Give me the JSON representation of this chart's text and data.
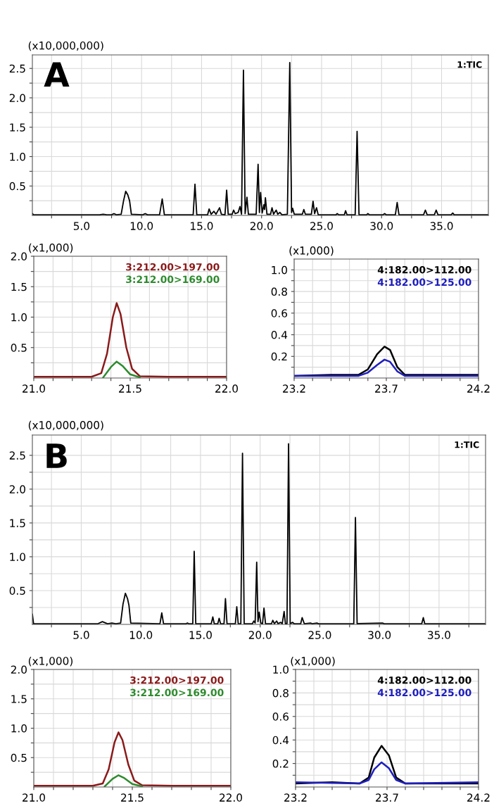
{
  "chart_data": [
    {
      "type": "line",
      "ylabel": "(x10,000,000)",
      "annotations": [
        "A"
      ],
      "legend": "top right",
      "grid": true,
      "xlim": [
        0.9,
        38.9
      ],
      "ylim": [
        0,
        2.73
      ],
      "xticks": [
        {
          "value": 2.5,
          "label": null
        },
        {
          "value": 5,
          "label": "5.0"
        },
        {
          "value": 7.5,
          "label": null
        },
        {
          "value": 10,
          "label": "10.0"
        },
        {
          "value": 12.5,
          "label": null
        },
        {
          "value": 15,
          "label": "15.0"
        },
        {
          "value": 17.5,
          "label": null
        },
        {
          "value": 20,
          "label": "20.0"
        },
        {
          "value": 22.5,
          "label": null
        },
        {
          "value": 25,
          "label": "25.0"
        },
        {
          "value": 27.5,
          "label": null
        },
        {
          "value": 30,
          "label": "30.0"
        },
        {
          "value": 32.5,
          "label": null
        },
        {
          "value": 35,
          "label": "35.0"
        },
        {
          "value": 37.5,
          "label": null
        }
      ],
      "yticks": [
        {
          "value": 0.25,
          "label": null
        },
        {
          "value": 0.5,
          "label": "0.5"
        },
        {
          "value": 0.75,
          "label": null
        },
        {
          "value": 1,
          "label": "1.0"
        },
        {
          "value": 1.25,
          "label": null
        },
        {
          "value": 1.5,
          "label": "1.5"
        },
        {
          "value": 1.75,
          "label": null
        },
        {
          "value": 2,
          "label": "2.0"
        },
        {
          "value": 2.25,
          "label": null
        },
        {
          "value": 2.5,
          "label": "2.5"
        }
      ],
      "series": [
        {
          "name": "1:TIC",
          "color": "#000000",
          "x": [
            0.9,
            1.0,
            6.5,
            6.8,
            7.1,
            7.5,
            7.7,
            7.9,
            8.3,
            8.5,
            8.68,
            8.85,
            9.0,
            9.15,
            10.1,
            10.3,
            10.5,
            11.5,
            11.72,
            11.9,
            14.3,
            14.45,
            14.6,
            15.5,
            15.63,
            15.8,
            16.03,
            16.2,
            16.5,
            16.65,
            16.95,
            17.09,
            17.22,
            17.55,
            17.67,
            17.8,
            18.05,
            18.2,
            18.33,
            18.49,
            18.63,
            18.78,
            18.9,
            19.55,
            19.71,
            19.82,
            19.92,
            20.05,
            20.19,
            20.25,
            20.32,
            20.45,
            20.75,
            20.87,
            21.0,
            21.22,
            21.35,
            21.53,
            21.7,
            22.15,
            22.35,
            22.5,
            22.59,
            22.72,
            23.4,
            23.52,
            23.65,
            24.15,
            24.29,
            24.42,
            24.58,
            24.72,
            26.2,
            26.3,
            26.45,
            26.9,
            27.0,
            27.12,
            27.8,
            27.96,
            28.12,
            28.75,
            28.86,
            29.0,
            30.1,
            30.26,
            30.4,
            31.15,
            31.3,
            31.45,
            33.5,
            33.65,
            33.8,
            34.4,
            34.55,
            34.7,
            35.8,
            35.93,
            36.05,
            38.9
          ],
          "values": [
            0.03,
            0.01,
            0.01,
            0.02,
            0.01,
            0.01,
            0.03,
            0.01,
            0.02,
            0.25,
            0.41,
            0.35,
            0.25,
            0.02,
            0.01,
            0.03,
            0.01,
            0.01,
            0.28,
            0.01,
            0.01,
            0.53,
            0.01,
            0.01,
            0.11,
            0.02,
            0.07,
            0.02,
            0.13,
            0.02,
            0.01,
            0.43,
            0.02,
            0.02,
            0.09,
            0.03,
            0.05,
            0.15,
            0.02,
            2.47,
            0.03,
            0.31,
            0.02,
            0.02,
            0.87,
            0.05,
            0.39,
            0.04,
            0.18,
            0.1,
            0.3,
            0.02,
            0.02,
            0.13,
            0.02,
            0.09,
            0.02,
            0.05,
            0.01,
            0.02,
            2.6,
            0.05,
            0.12,
            0.02,
            0.02,
            0.1,
            0.02,
            0.02,
            0.24,
            0.03,
            0.13,
            0.01,
            0.01,
            0.03,
            0.01,
            0.01,
            0.08,
            0.01,
            0.01,
            1.43,
            0.01,
            0.01,
            0.03,
            0.01,
            0.01,
            0.03,
            0.01,
            0.01,
            0.22,
            0.01,
            0.01,
            0.09,
            0.01,
            0.01,
            0.09,
            0.01,
            0.01,
            0.04,
            0.01,
            0.01
          ]
        }
      ]
    },
    {
      "type": "line",
      "ylabel": "(x1,000)",
      "legend": "top right",
      "grid": true,
      "xlim": [
        21.0,
        22.0
      ],
      "ylim": [
        0,
        2.0
      ],
      "xticks": [
        {
          "value": 21.0,
          "label": "21.0"
        },
        {
          "value": 21.1,
          "label": null
        },
        {
          "value": 21.2,
          "label": null
        },
        {
          "value": 21.3,
          "label": null
        },
        {
          "value": 21.4,
          "label": null
        },
        {
          "value": 21.5,
          "label": "21.5"
        },
        {
          "value": 21.6,
          "label": null
        },
        {
          "value": 21.7,
          "label": null
        },
        {
          "value": 21.8,
          "label": null
        },
        {
          "value": 21.9,
          "label": null
        },
        {
          "value": 22.0,
          "label": "22.0"
        }
      ],
      "yticks": [
        {
          "value": 0.25,
          "label": null
        },
        {
          "value": 0.5,
          "label": "0.5"
        },
        {
          "value": 0.75,
          "label": null
        },
        {
          "value": 1,
          "label": "1.0"
        },
        {
          "value": 1.25,
          "label": null
        },
        {
          "value": 1.5,
          "label": "1.5"
        },
        {
          "value": 1.75,
          "label": null
        },
        {
          "value": 2,
          "label": "2.0"
        }
      ],
      "series": [
        {
          "name": "3:212.00>197.00",
          "color": "#8b1a1a",
          "x": [
            21.0,
            21.3,
            21.35,
            21.38,
            21.41,
            21.43,
            21.45,
            21.48,
            21.51,
            21.55,
            21.7,
            22.0
          ],
          "values": [
            0.02,
            0.02,
            0.08,
            0.4,
            1.0,
            1.23,
            1.05,
            0.5,
            0.15,
            0.03,
            0.02,
            0.02
          ]
        },
        {
          "name": "3:212.00>169.00",
          "color": "#2e8b2e",
          "x": [
            21.36,
            21.4,
            21.43,
            21.46,
            21.5,
            21.55
          ],
          "values": [
            0.01,
            0.18,
            0.27,
            0.2,
            0.06,
            0.01
          ]
        }
      ]
    },
    {
      "type": "line",
      "ylabel": "(x1,000)",
      "legend": "top right",
      "grid": true,
      "xlim": [
        23.2,
        24.2
      ],
      "ylim": [
        0,
        1.1
      ],
      "xticks": [
        {
          "value": 23.2,
          "label": "23.2"
        },
        {
          "value": 23.3,
          "label": null
        },
        {
          "value": 23.4,
          "label": null
        },
        {
          "value": 23.5,
          "label": null
        },
        {
          "value": 23.6,
          "label": null
        },
        {
          "value": 23.7,
          "label": "23.7"
        },
        {
          "value": 23.8,
          "label": null
        },
        {
          "value": 23.9,
          "label": null
        },
        {
          "value": 24.0,
          "label": null
        },
        {
          "value": 24.1,
          "label": null
        },
        {
          "value": 24.2,
          "label": "24.2"
        }
      ],
      "yticks": [
        {
          "value": 0.1,
          "label": null
        },
        {
          "value": 0.2,
          "label": "0.2"
        },
        {
          "value": 0.3,
          "label": null
        },
        {
          "value": 0.4,
          "label": "0.4"
        },
        {
          "value": 0.5,
          "label": null
        },
        {
          "value": 0.6,
          "label": "0.6"
        },
        {
          "value": 0.7,
          "label": null
        },
        {
          "value": 0.8,
          "label": "0.8"
        },
        {
          "value": 0.9,
          "label": null
        },
        {
          "value": 1.0,
          "label": "1.0"
        }
      ],
      "series": [
        {
          "name": "4:182.00>112.00",
          "color": "#000000",
          "x": [
            23.2,
            23.4,
            23.55,
            23.6,
            23.65,
            23.69,
            23.72,
            23.76,
            23.8,
            24.0,
            24.2
          ],
          "values": [
            0.02,
            0.03,
            0.03,
            0.08,
            0.22,
            0.29,
            0.26,
            0.1,
            0.03,
            0.03,
            0.03
          ]
        },
        {
          "name": "4:182.00>125.00",
          "color": "#1f1fbf",
          "x": [
            23.2,
            23.55,
            23.6,
            23.65,
            23.69,
            23.72,
            23.76,
            23.8,
            24.2
          ],
          "values": [
            0.02,
            0.02,
            0.05,
            0.12,
            0.17,
            0.15,
            0.06,
            0.02,
            0.02
          ]
        }
      ]
    },
    {
      "type": "line",
      "ylabel": "(x10,000,000)",
      "annotations": [
        "B"
      ],
      "legend": "top right",
      "grid": true,
      "xlim": [
        0.9,
        38.9
      ],
      "ylim": [
        0,
        2.8
      ],
      "xticks": [
        {
          "value": 2.5,
          "label": null
        },
        {
          "value": 5,
          "label": "5.0"
        },
        {
          "value": 7.5,
          "label": null
        },
        {
          "value": 10,
          "label": "10.0"
        },
        {
          "value": 12.5,
          "label": null
        },
        {
          "value": 15,
          "label": "15.0"
        },
        {
          "value": 17.5,
          "label": null
        },
        {
          "value": 20,
          "label": "20.0"
        },
        {
          "value": 22.5,
          "label": null
        },
        {
          "value": 25,
          "label": "25.0"
        },
        {
          "value": 27.5,
          "label": null
        },
        {
          "value": 30,
          "label": "30.0"
        },
        {
          "value": 32.5,
          "label": null
        },
        {
          "value": 35,
          "label": "35.0"
        },
        {
          "value": 37.5,
          "label": null
        }
      ],
      "yticks": [
        {
          "value": 0.25,
          "label": null
        },
        {
          "value": 0.5,
          "label": "0.5"
        },
        {
          "value": 0.75,
          "label": null
        },
        {
          "value": 1,
          "label": "1.0"
        },
        {
          "value": 1.25,
          "label": null
        },
        {
          "value": 1.5,
          "label": "1.5"
        },
        {
          "value": 1.75,
          "label": null
        },
        {
          "value": 2,
          "label": "2.0"
        },
        {
          "value": 2.25,
          "label": null
        },
        {
          "value": 2.5,
          "label": "2.5"
        }
      ],
      "series": [
        {
          "name": "1:TIC",
          "color": "#000000",
          "x": [
            0.9,
            1.0,
            6.4,
            6.77,
            7.2,
            7.57,
            7.9,
            8.3,
            8.5,
            8.7,
            8.88,
            9.0,
            9.15,
            11.6,
            11.75,
            11.9,
            13.8,
            13.9,
            14.0,
            14.35,
            14.47,
            14.6,
            15.9,
            16.03,
            16.15,
            16.45,
            16.56,
            16.68,
            16.97,
            17.09,
            17.22,
            17.92,
            18.04,
            18.16,
            18.38,
            18.52,
            18.66,
            19.35,
            19.47,
            19.58,
            19.71,
            19.82,
            19.92,
            20.05,
            20.2,
            20.32,
            20.45,
            20.95,
            21.06,
            21.2,
            21.38,
            21.5,
            21.72,
            21.85,
            22.01,
            22.12,
            22.25,
            22.38,
            22.52,
            22.72,
            22.85,
            23.4,
            23.52,
            23.7,
            24.23,
            24.35,
            24.76,
            24.9,
            26.3,
            27.85,
            27.99,
            28.13,
            30.26,
            30.4,
            33.55,
            33.68,
            33.8,
            34.6,
            38.9
          ],
          "values": [
            0.15,
            0.01,
            0.01,
            0.04,
            0.01,
            0.02,
            0.01,
            0.02,
            0.3,
            0.46,
            0.38,
            0.28,
            0.02,
            0.01,
            0.17,
            0.01,
            0.01,
            0.02,
            0.01,
            0.01,
            1.08,
            0.01,
            0.01,
            0.11,
            0.01,
            0.01,
            0.09,
            0.01,
            0.01,
            0.38,
            0.01,
            0.01,
            0.26,
            0.01,
            0.01,
            2.53,
            0.01,
            0.01,
            0.05,
            0.02,
            0.92,
            0.04,
            0.18,
            0.02,
            0.01,
            0.24,
            0.01,
            0.01,
            0.06,
            0.01,
            0.05,
            0.01,
            0.03,
            0.01,
            0.19,
            0.01,
            0.01,
            2.67,
            0.01,
            0.03,
            0.01,
            0.01,
            0.1,
            0.01,
            0.02,
            0.01,
            0.02,
            0.01,
            0.01,
            0.01,
            1.58,
            0.01,
            0.02,
            0.01,
            0.01,
            0.1,
            0.01,
            0.01,
            0.01
          ]
        }
      ]
    },
    {
      "type": "line",
      "ylabel": "(x1,000)",
      "legend": "top right",
      "grid": true,
      "xlim": [
        21.0,
        22.0
      ],
      "ylim": [
        0,
        2.0
      ],
      "xticks": [
        {
          "value": 21.0,
          "label": "21.0"
        },
        {
          "value": 21.1,
          "label": null
        },
        {
          "value": 21.2,
          "label": null
        },
        {
          "value": 21.3,
          "label": null
        },
        {
          "value": 21.4,
          "label": null
        },
        {
          "value": 21.5,
          "label": "21.5"
        },
        {
          "value": 21.6,
          "label": null
        },
        {
          "value": 21.7,
          "label": null
        },
        {
          "value": 21.8,
          "label": null
        },
        {
          "value": 21.9,
          "label": null
        },
        {
          "value": 22.0,
          "label": "22.0"
        }
      ],
      "yticks": [
        {
          "value": 0.25,
          "label": null
        },
        {
          "value": 0.5,
          "label": "0.5"
        },
        {
          "value": 0.75,
          "label": null
        },
        {
          "value": 1,
          "label": "1.0"
        },
        {
          "value": 1.25,
          "label": null
        },
        {
          "value": 1.5,
          "label": "1.5"
        },
        {
          "value": 1.75,
          "label": null
        },
        {
          "value": 2,
          "label": "2.0"
        }
      ],
      "series": [
        {
          "name": "3:212.00>197.00",
          "color": "#8b1a1a",
          "x": [
            21.0,
            21.3,
            21.35,
            21.38,
            21.41,
            21.43,
            21.45,
            21.48,
            21.51,
            21.55,
            21.7,
            22.0
          ],
          "values": [
            0.02,
            0.02,
            0.06,
            0.3,
            0.76,
            0.93,
            0.8,
            0.38,
            0.11,
            0.03,
            0.02,
            0.02
          ]
        },
        {
          "name": "3:212.00>169.00",
          "color": "#2e8b2e",
          "x": [
            21.36,
            21.4,
            21.43,
            21.46,
            21.5,
            21.55
          ],
          "values": [
            0.01,
            0.14,
            0.2,
            0.15,
            0.05,
            0.01
          ]
        }
      ]
    },
    {
      "type": "line",
      "ylabel": "(x1,000)",
      "legend": "top right",
      "grid": true,
      "xlim": [
        23.2,
        24.2
      ],
      "ylim": [
        0,
        1.0
      ],
      "xticks": [
        {
          "value": 23.2,
          "label": "23.2"
        },
        {
          "value": 23.3,
          "label": null
        },
        {
          "value": 23.4,
          "label": null
        },
        {
          "value": 23.5,
          "label": null
        },
        {
          "value": 23.6,
          "label": null
        },
        {
          "value": 23.7,
          "label": "23.7"
        },
        {
          "value": 23.8,
          "label": null
        },
        {
          "value": 23.9,
          "label": null
        },
        {
          "value": 24.0,
          "label": null
        },
        {
          "value": 24.1,
          "label": null
        },
        {
          "value": 24.2,
          "label": "24.2"
        }
      ],
      "yticks": [
        {
          "value": 0.1,
          "label": null
        },
        {
          "value": 0.2,
          "label": "0.2"
        },
        {
          "value": 0.3,
          "label": null
        },
        {
          "value": 0.4,
          "label": "0.4"
        },
        {
          "value": 0.5,
          "label": null
        },
        {
          "value": 0.6,
          "label": "0.6"
        },
        {
          "value": 0.7,
          "label": null
        },
        {
          "value": 0.8,
          "label": "0.8"
        },
        {
          "value": 0.9,
          "label": null
        },
        {
          "value": 1.0,
          "label": "1.0"
        }
      ],
      "series": [
        {
          "name": "4:182.00>112.00",
          "color": "#000000",
          "x": [
            23.2,
            23.4,
            23.55,
            23.6,
            23.63,
            23.67,
            23.71,
            23.75,
            23.8,
            24.0,
            24.2
          ],
          "values": [
            0.03,
            0.04,
            0.03,
            0.08,
            0.25,
            0.35,
            0.27,
            0.08,
            0.03,
            0.03,
            0.03
          ]
        },
        {
          "name": "4:182.00>125.00",
          "color": "#1f1fbf",
          "x": [
            23.2,
            23.55,
            23.6,
            23.63,
            23.67,
            23.71,
            23.75,
            23.8,
            24.2
          ],
          "values": [
            0.04,
            0.03,
            0.06,
            0.15,
            0.21,
            0.16,
            0.06,
            0.03,
            0.04
          ]
        }
      ]
    }
  ]
}
